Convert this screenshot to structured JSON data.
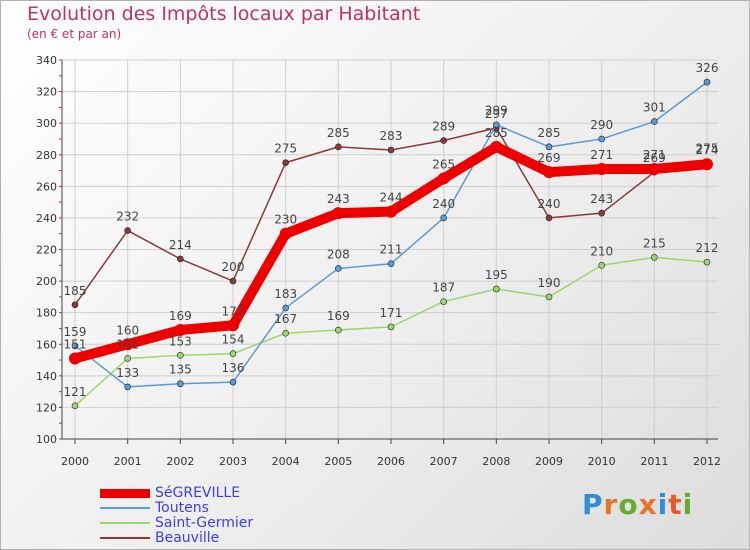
{
  "title": "Evolution des Impôts locaux par Habitant",
  "subtitle": "(en € et par an)",
  "logo": {
    "text": "Proxiti",
    "colors": [
      "#2f8fd0",
      "#e8732a",
      "#6aaa2a",
      "#e8732a",
      "#2f8fd0",
      "#e85a2a",
      "#6aaa2a"
    ]
  },
  "chart_data": {
    "type": "line",
    "x": [
      "2000",
      "2001",
      "2002",
      "2003",
      "2004",
      "2005",
      "2006",
      "2007",
      "2008",
      "2009",
      "2010",
      "2011",
      "2012"
    ],
    "ylim": [
      100,
      340
    ],
    "yticks": [
      100,
      120,
      140,
      160,
      180,
      200,
      220,
      240,
      260,
      280,
      300,
      320,
      340
    ],
    "grid": true,
    "legend_position": "bottom-left",
    "series": [
      {
        "name": "SéGREVILLE",
        "color": "#ee0000",
        "values": [
          151,
          160,
          169,
          172,
          230,
          243,
          244,
          265,
          285,
          269,
          271,
          271,
          274
        ]
      },
      {
        "name": "Toutens",
        "color": "#5b9bd5",
        "values": [
          159,
          133,
          135,
          136,
          183,
          208,
          211,
          240,
          299,
          285,
          290,
          301,
          326
        ]
      },
      {
        "name": "Saint-Germier",
        "color": "#99d96a",
        "values": [
          121,
          151,
          153,
          154,
          167,
          169,
          171,
          187,
          195,
          190,
          210,
          215,
          212
        ]
      },
      {
        "name": "Beauville",
        "color": "#8b3a3a",
        "values": [
          185,
          232,
          214,
          200,
          275,
          285,
          283,
          289,
          297,
          240,
          243,
          269,
          275
        ]
      }
    ]
  }
}
